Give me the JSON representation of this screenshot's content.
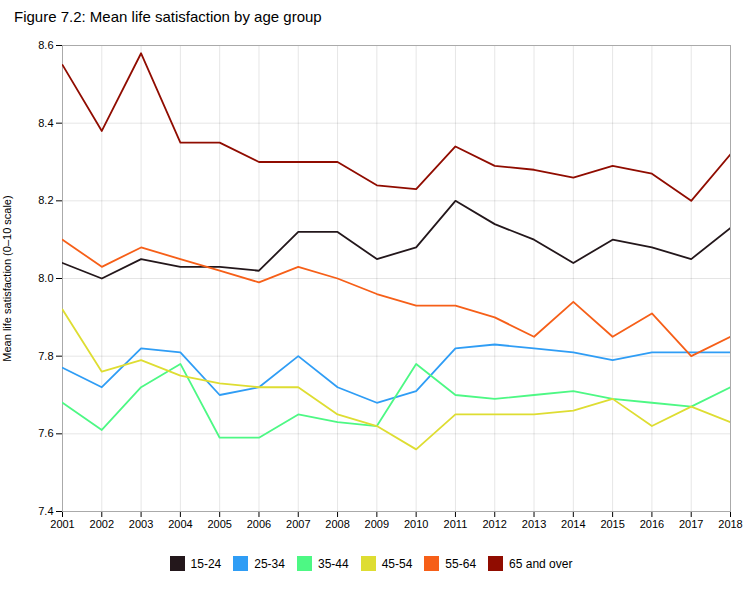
{
  "chart_data": {
    "type": "line",
    "title": "Figure 7.2: Mean life satisfaction by age group",
    "ylabel": "Mean life satisfaction (0–10 scale)",
    "x": [
      2001,
      2002,
      2003,
      2004,
      2005,
      2006,
      2007,
      2008,
      2009,
      2010,
      2011,
      2012,
      2013,
      2014,
      2015,
      2016,
      2017,
      2018
    ],
    "series": [
      {
        "name": "15-24",
        "values": [
          8.04,
          8.0,
          8.05,
          8.03,
          8.03,
          8.02,
          8.12,
          8.12,
          8.05,
          8.08,
          8.2,
          8.14,
          8.1,
          8.04,
          8.1,
          8.08,
          8.05,
          8.13
        ]
      },
      {
        "name": "25-34",
        "values": [
          7.77,
          7.72,
          7.82,
          7.81,
          7.7,
          7.72,
          7.8,
          7.72,
          7.68,
          7.71,
          7.82,
          7.83,
          7.82,
          7.81,
          7.79,
          7.81,
          7.81,
          7.81
        ]
      },
      {
        "name": "35-44",
        "values": [
          7.68,
          7.61,
          7.72,
          7.78,
          7.59,
          7.59,
          7.65,
          7.63,
          7.62,
          7.78,
          7.7,
          7.69,
          7.7,
          7.71,
          7.69,
          7.68,
          7.67,
          7.72
        ]
      },
      {
        "name": "45-54",
        "values": [
          7.92,
          7.76,
          7.79,
          7.75,
          7.73,
          7.72,
          7.72,
          7.65,
          7.62,
          7.56,
          7.65,
          7.65,
          7.65,
          7.66,
          7.69,
          7.62,
          7.67,
          7.63
        ]
      },
      {
        "name": "55-64",
        "values": [
          8.1,
          8.03,
          8.08,
          8.05,
          8.02,
          7.99,
          8.03,
          8.0,
          7.96,
          7.93,
          7.93,
          7.9,
          7.85,
          7.94,
          7.85,
          7.91,
          7.8,
          7.85
        ]
      },
      {
        "name": "65 and over",
        "values": [
          8.55,
          8.38,
          8.58,
          8.35,
          8.35,
          8.3,
          8.3,
          8.3,
          8.24,
          8.23,
          8.34,
          8.29,
          8.28,
          8.26,
          8.29,
          8.27,
          8.2,
          8.32
        ]
      }
    ],
    "xlim": [
      2001,
      2018
    ],
    "xticks": [
      2001,
      2002,
      2003,
      2004,
      2005,
      2006,
      2007,
      2008,
      2009,
      2010,
      2011,
      2012,
      2013,
      2014,
      2015,
      2016,
      2017,
      2018
    ],
    "ylim": [
      7.4,
      8.6
    ],
    "yticks": [
      7.4,
      7.6,
      7.8,
      {
        "value": 8.0,
        "label": "8.0"
      },
      8.2,
      8.4,
      8.6
    ],
    "grid": true,
    "legend": "bottom"
  }
}
